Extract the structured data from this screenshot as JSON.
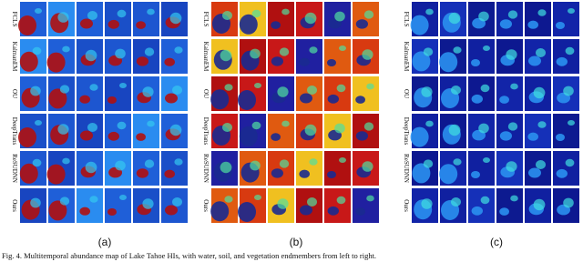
{
  "panels": [
    {
      "label": "(a)",
      "rows": [
        "FCLS",
        "KalmanEM",
        "OU",
        "DeepTrans",
        "ReSUDNN",
        "Ours"
      ]
    },
    {
      "label": "(b)",
      "rows": [
        "FCLS",
        "KalmanEM",
        "OU",
        "DeepTrans",
        "ReSUDNN",
        "Ours"
      ]
    },
    {
      "label": "(c)",
      "rows": [
        "FCLS",
        "KalmanEM",
        "OU",
        "DeepTrans",
        "ReSUDNN",
        "Ours"
      ]
    }
  ],
  "caption": "Fig. 4.  Multitemporal abundance map of Lake Tahoe HIs, with water, soil, and vegetation endmembers from left to right."
}
